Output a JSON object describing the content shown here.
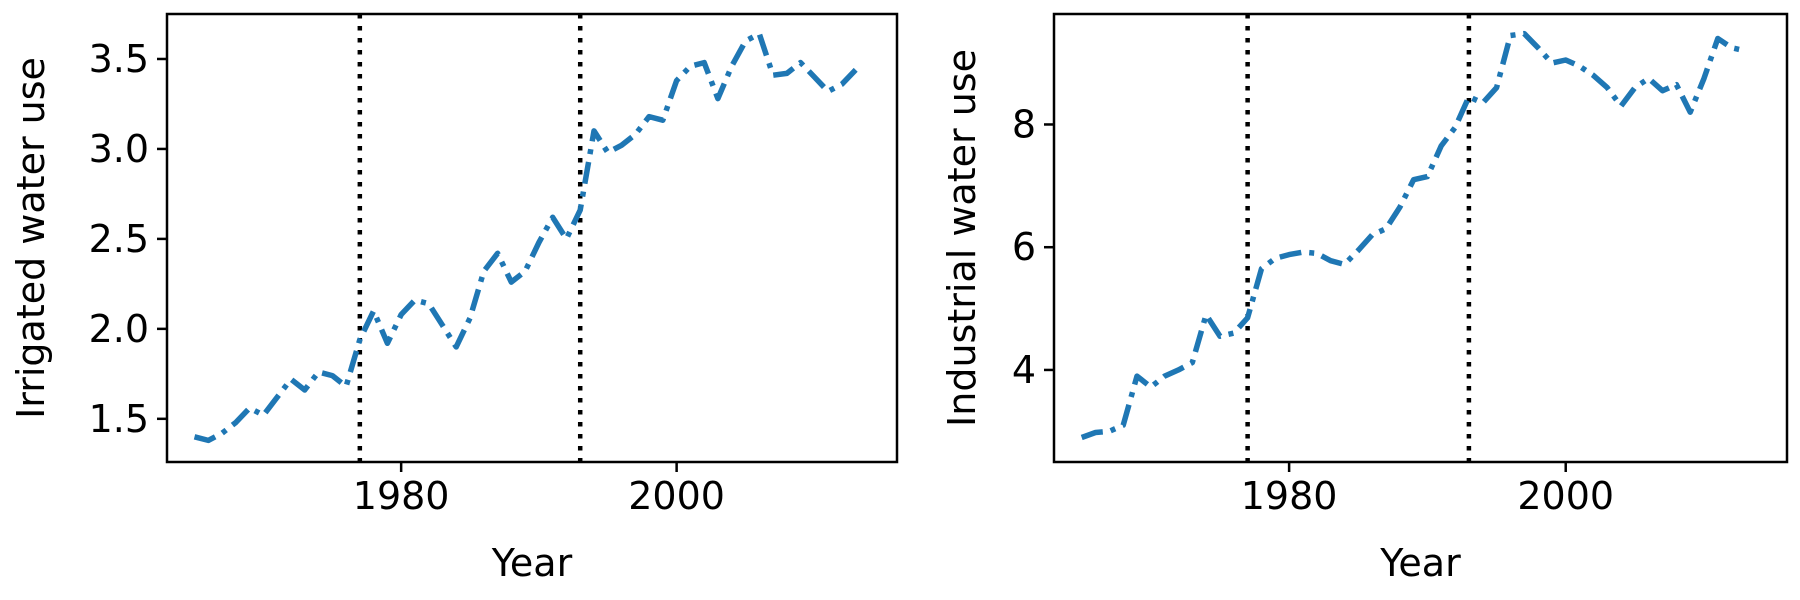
{
  "chart_data": [
    {
      "type": "line",
      "xlabel": "Year",
      "ylabel": "Irrigated water use",
      "xlim": [
        1963,
        2016
      ],
      "ylim": [
        1.26,
        3.75
      ],
      "xticks": [
        1980,
        2000
      ],
      "yticks": [
        1.5,
        2.0,
        2.5,
        3.0,
        3.5
      ],
      "ytick_labels": [
        "1.5",
        "2.0",
        "2.5",
        "3.0",
        "3.5"
      ],
      "grid": false,
      "vlines": [
        1977,
        1993
      ],
      "series_color": "#1f77b4",
      "series": [
        {
          "x": [
            1965,
            1966,
            1967,
            1968,
            1969,
            1970,
            1971,
            1972,
            1973,
            1974,
            1975,
            1976,
            1977,
            1978,
            1979,
            1980,
            1981,
            1982,
            1983,
            1984,
            1985,
            1986,
            1987,
            1988,
            1989,
            1990,
            1991,
            1992,
            1993,
            1994,
            1995,
            1996,
            1997,
            1998,
            1999,
            2000,
            2001,
            2002,
            2003,
            2004,
            2005,
            2006,
            2007,
            2008,
            2009,
            2010,
            2011,
            2012,
            2013
          ],
          "values": [
            1.4,
            1.38,
            1.42,
            1.48,
            1.56,
            1.52,
            1.62,
            1.72,
            1.66,
            1.76,
            1.74,
            1.68,
            1.94,
            2.1,
            1.92,
            2.08,
            2.16,
            2.14,
            2.02,
            1.9,
            2.06,
            2.32,
            2.42,
            2.26,
            2.32,
            2.48,
            2.62,
            2.5,
            2.66,
            3.1,
            2.98,
            3.02,
            3.08,
            3.18,
            3.16,
            3.38,
            3.46,
            3.48,
            3.28,
            3.46,
            3.6,
            3.64,
            3.41,
            3.42,
            3.48,
            3.4,
            3.32,
            3.36,
            3.44
          ]
        }
      ]
    },
    {
      "type": "line",
      "xlabel": "Year",
      "ylabel": "Industrial water use",
      "xlim": [
        1963,
        2016
      ],
      "ylim": [
        2.5,
        9.8
      ],
      "xticks": [
        1980,
        2000
      ],
      "yticks": [
        4,
        6,
        8
      ],
      "ytick_labels": [
        "4",
        "6",
        "8"
      ],
      "grid": false,
      "vlines": [
        1977,
        1993
      ],
      "series_color": "#1f77b4",
      "series": [
        {
          "x": [
            1965,
            1966,
            1967,
            1968,
            1969,
            1970,
            1971,
            1972,
            1973,
            1974,
            1975,
            1976,
            1977,
            1978,
            1979,
            1980,
            1981,
            1982,
            1983,
            1984,
            1985,
            1986,
            1987,
            1988,
            1989,
            1990,
            1991,
            1992,
            1993,
            1994,
            1995,
            1996,
            1997,
            1998,
            1999,
            2000,
            2001,
            2002,
            2003,
            2004,
            2005,
            2006,
            2007,
            2008,
            2009,
            2010,
            2011,
            2012,
            2013
          ],
          "values": [
            2.9,
            2.98,
            3.0,
            3.1,
            3.9,
            3.72,
            3.9,
            4.0,
            4.12,
            4.9,
            4.55,
            4.6,
            4.85,
            5.65,
            5.82,
            5.88,
            5.92,
            5.9,
            5.78,
            5.72,
            5.95,
            6.2,
            6.3,
            6.65,
            7.1,
            7.15,
            7.65,
            7.95,
            8.45,
            8.35,
            8.6,
            9.45,
            9.48,
            9.25,
            9.0,
            9.05,
            8.95,
            8.8,
            8.6,
            8.3,
            8.6,
            8.75,
            8.55,
            8.65,
            8.2,
            8.75,
            9.4,
            9.25,
            9.2
          ]
        }
      ]
    }
  ]
}
